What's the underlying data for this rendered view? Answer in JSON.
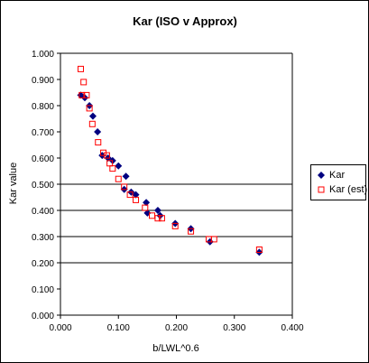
{
  "chart_data": {
    "type": "scatter",
    "title": "Kar (ISO v Approx)",
    "xlabel": "b/LWL^0.6",
    "ylabel": "Kar value",
    "xlim": [
      0.0,
      0.4
    ],
    "ylim": [
      0.0,
      1.0
    ],
    "x_ticks": [
      "0.000",
      "0.100",
      "0.200",
      "0.300",
      "0.400"
    ],
    "y_ticks": [
      "0.000",
      "0.100",
      "0.200",
      "0.300",
      "0.400",
      "0.500",
      "0.600",
      "0.700",
      "0.800",
      "0.900",
      "1.000"
    ],
    "x_tick_values": [
      0.0,
      0.1,
      0.2,
      0.3,
      0.4
    ],
    "y_tick_values": [
      0.0,
      0.1,
      0.2,
      0.3,
      0.4,
      0.5,
      0.6,
      0.7,
      0.8,
      0.9,
      1.0
    ],
    "horizontal_gridlines": [
      0.2,
      0.3,
      0.4,
      0.5
    ],
    "legend_position": "right",
    "series": [
      {
        "name": "Kar",
        "marker": "diamond",
        "color": "#000080",
        "points": [
          {
            "x": 0.035,
            "y": 0.84
          },
          {
            "x": 0.042,
            "y": 0.83
          },
          {
            "x": 0.05,
            "y": 0.8
          },
          {
            "x": 0.056,
            "y": 0.76
          },
          {
            "x": 0.064,
            "y": 0.7
          },
          {
            "x": 0.072,
            "y": 0.61
          },
          {
            "x": 0.082,
            "y": 0.6
          },
          {
            "x": 0.09,
            "y": 0.59
          },
          {
            "x": 0.1,
            "y": 0.57
          },
          {
            "x": 0.11,
            "y": 0.48
          },
          {
            "x": 0.113,
            "y": 0.53
          },
          {
            "x": 0.122,
            "y": 0.47
          },
          {
            "x": 0.13,
            "y": 0.46
          },
          {
            "x": 0.148,
            "y": 0.43
          },
          {
            "x": 0.15,
            "y": 0.39
          },
          {
            "x": 0.168,
            "y": 0.4
          },
          {
            "x": 0.172,
            "y": 0.38
          },
          {
            "x": 0.198,
            "y": 0.35
          },
          {
            "x": 0.225,
            "y": 0.33
          },
          {
            "x": 0.258,
            "y": 0.28
          },
          {
            "x": 0.343,
            "y": 0.24
          }
        ]
      },
      {
        "name": "Kar (est)",
        "marker": "square",
        "color": "#ff0000",
        "points": [
          {
            "x": 0.035,
            "y": 0.94
          },
          {
            "x": 0.037,
            "y": 0.84
          },
          {
            "x": 0.04,
            "y": 0.89
          },
          {
            "x": 0.045,
            "y": 0.84
          },
          {
            "x": 0.05,
            "y": 0.79
          },
          {
            "x": 0.055,
            "y": 0.73
          },
          {
            "x": 0.065,
            "y": 0.66
          },
          {
            "x": 0.074,
            "y": 0.62
          },
          {
            "x": 0.08,
            "y": 0.61
          },
          {
            "x": 0.085,
            "y": 0.58
          },
          {
            "x": 0.09,
            "y": 0.56
          },
          {
            "x": 0.1,
            "y": 0.52
          },
          {
            "x": 0.11,
            "y": 0.49
          },
          {
            "x": 0.12,
            "y": 0.46
          },
          {
            "x": 0.13,
            "y": 0.44
          },
          {
            "x": 0.146,
            "y": 0.41
          },
          {
            "x": 0.158,
            "y": 0.38
          },
          {
            "x": 0.168,
            "y": 0.37
          },
          {
            "x": 0.175,
            "y": 0.37
          },
          {
            "x": 0.198,
            "y": 0.34
          },
          {
            "x": 0.225,
            "y": 0.32
          },
          {
            "x": 0.256,
            "y": 0.29
          },
          {
            "x": 0.265,
            "y": 0.29
          },
          {
            "x": 0.343,
            "y": 0.25
          }
        ]
      }
    ]
  }
}
